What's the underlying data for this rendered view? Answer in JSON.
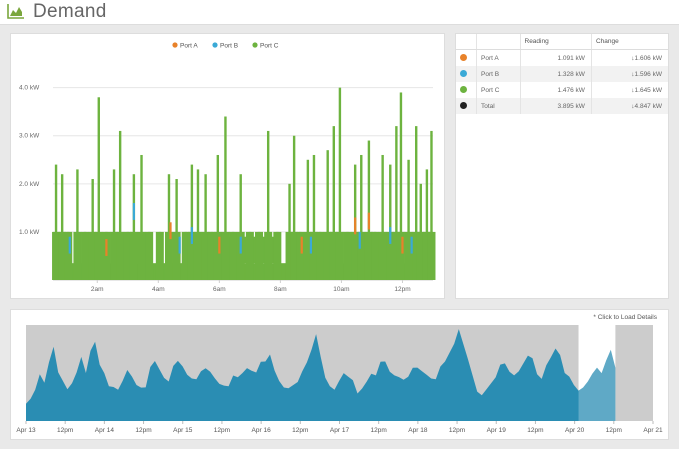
{
  "header": {
    "title": "Demand",
    "icon": "area-chart-icon"
  },
  "legend": [
    {
      "name": "Port A",
      "color": "#e8822a"
    },
    {
      "name": "Port B",
      "color": "#3aa9d6"
    },
    {
      "name": "Port C",
      "color": "#6db33f"
    }
  ],
  "table": {
    "headers": [
      "",
      "",
      "Reading",
      "Change"
    ],
    "rows": [
      {
        "color": "#e8822a",
        "name": "Port A",
        "reading": "1.091 kW",
        "change": "↓1.606 kW"
      },
      {
        "color": "#3aa9d6",
        "name": "Port B",
        "reading": "1.328 kW",
        "change": "↓1.596 kW"
      },
      {
        "color": "#6db33f",
        "name": "Port C",
        "reading": "1.476 kW",
        "change": "↓1.645 kW"
      },
      {
        "color": "#222222",
        "name": "Total",
        "reading": "3.895 kW",
        "change": "↓4.847 kW"
      }
    ]
  },
  "overview": {
    "note": "* Click to Load Details"
  },
  "chart_data": [
    {
      "type": "area",
      "title": "",
      "ylabel": "",
      "xlabel": "",
      "y_ticks": [
        "1.0 kW",
        "2.0 kW",
        "3.0 kW",
        "4.0 kW"
      ],
      "ylim": [
        0,
        4.7
      ],
      "x_range_hours": [
        0.55,
        13.0
      ],
      "x_ticks": [
        {
          "x": 2,
          "label": "2am"
        },
        {
          "x": 4,
          "label": "4am"
        },
        {
          "x": 6,
          "label": "6am"
        },
        {
          "x": 8,
          "label": "8am"
        },
        {
          "x": 10,
          "label": "10am"
        },
        {
          "x": 12,
          "label": "12pm"
        }
      ],
      "grid": true,
      "legend_position": "top-center",
      "baseline_kw": 0.35,
      "series": [
        {
          "name": "Port C",
          "color": "#6db33f",
          "spikes": [
            [
              0.65,
              2.4
            ],
            [
              0.85,
              2.2
            ],
            [
              1.05,
              1.0
            ],
            [
              1.35,
              2.3
            ],
            [
              1.6,
              1.0
            ],
            [
              1.85,
              2.1
            ],
            [
              2.05,
              3.8
            ],
            [
              2.3,
              1.0
            ],
            [
              2.55,
              2.3
            ],
            [
              2.75,
              3.1
            ],
            [
              3.0,
              1.0
            ],
            [
              3.2,
              2.2
            ],
            [
              3.45,
              2.6
            ],
            [
              3.7,
              1.0
            ],
            [
              4.05,
              1.0
            ],
            [
              4.35,
              2.2
            ],
            [
              4.6,
              2.1
            ],
            [
              4.9,
              1.0
            ],
            [
              5.1,
              2.4
            ],
            [
              5.3,
              2.3
            ],
            [
              5.55,
              2.2
            ],
            [
              5.75,
              1.0
            ],
            [
              5.95,
              2.6
            ],
            [
              6.2,
              3.4
            ],
            [
              6.45,
              1.0
            ],
            [
              6.7,
              2.2
            ],
            [
              7.0,
              1.0
            ],
            [
              7.3,
              1.0
            ],
            [
              7.6,
              3.1
            ],
            [
              7.9,
              1.0
            ],
            [
              8.3,
              2.0
            ],
            [
              8.45,
              3.0
            ],
            [
              8.65,
              1.0
            ],
            [
              8.9,
              2.5
            ],
            [
              9.1,
              2.6
            ],
            [
              9.3,
              1.0
            ],
            [
              9.55,
              2.7
            ],
            [
              9.75,
              3.2
            ],
            [
              9.95,
              4.0
            ],
            [
              10.2,
              1.0
            ],
            [
              10.45,
              2.4
            ],
            [
              10.65,
              2.6
            ],
            [
              10.9,
              2.9
            ],
            [
              11.1,
              1.0
            ],
            [
              11.35,
              2.6
            ],
            [
              11.6,
              2.4
            ],
            [
              11.8,
              3.2
            ],
            [
              11.95,
              3.9
            ],
            [
              12.2,
              2.5
            ],
            [
              12.45,
              3.2
            ],
            [
              12.6,
              2.0
            ],
            [
              12.8,
              2.3
            ],
            [
              12.95,
              3.1
            ]
          ]
        },
        {
          "name": "Port B",
          "color": "#3aa9d6",
          "spikes": [
            [
              1.1,
              0.9
            ],
            [
              3.2,
              1.6
            ],
            [
              4.7,
              0.9
            ],
            [
              5.1,
              1.1
            ],
            [
              6.7,
              0.9
            ],
            [
              9.0,
              0.9
            ],
            [
              10.6,
              1.0
            ],
            [
              11.6,
              1.1
            ],
            [
              12.3,
              0.9
            ]
          ]
        },
        {
          "name": "Port A",
          "color": "#e8822a",
          "spikes": [
            [
              2.3,
              0.85
            ],
            [
              4.4,
              1.2
            ],
            [
              6.0,
              0.9
            ],
            [
              8.7,
              0.9
            ],
            [
              10.45,
              1.3
            ],
            [
              10.9,
              1.4
            ],
            [
              12.0,
              0.9
            ]
          ]
        }
      ],
      "plateau": {
        "from": 5.3,
        "to": 7.9,
        "kw": 0.9
      }
    },
    {
      "type": "area",
      "title": "",
      "ylabel": "",
      "xlabel": "",
      "x_ticks": [
        "Apr 13",
        "12pm",
        "Apr 14",
        "12pm",
        "Apr 15",
        "12pm",
        "Apr 16",
        "12pm",
        "Apr 17",
        "12pm",
        "Apr 18",
        "12pm",
        "Apr 19",
        "12pm",
        "Apr 20",
        "12pm",
        "Apr 21"
      ],
      "x_range_days": [
        0,
        8
      ],
      "selection_days": [
        7.05,
        7.52
      ],
      "series": [
        {
          "name": "",
          "color": "#2a8db3",
          "values": [
            0.18,
            0.22,
            0.3,
            0.45,
            0.35,
            0.55,
            0.7,
            0.5,
            0.4,
            0.3,
            0.35,
            0.45,
            0.6,
            0.5,
            0.72,
            0.8,
            0.55,
            0.45,
            0.3,
            0.28,
            0.32,
            0.4,
            0.5,
            0.42,
            0.32,
            0.28,
            0.35,
            0.55,
            0.6,
            0.5,
            0.4,
            0.35,
            0.5,
            0.62,
            0.55,
            0.45,
            0.4,
            0.38,
            0.45,
            0.55,
            0.5,
            0.42,
            0.35,
            0.32,
            0.3,
            0.4,
            0.45,
            0.48,
            0.52,
            0.48,
            0.45,
            0.55,
            0.62,
            0.68,
            0.5,
            0.38,
            0.3,
            0.28,
            0.3,
            0.4,
            0.5,
            0.58,
            0.7,
            0.85,
            0.6,
            0.45,
            0.35,
            0.3,
            0.38,
            0.45,
            0.4,
            0.35,
            0.28,
            0.32,
            0.38,
            0.45,
            0.42,
            0.55,
            0.62,
            0.5,
            0.45,
            0.42,
            0.38,
            0.4,
            0.48,
            0.55,
            0.5,
            0.45,
            0.4,
            0.38,
            0.5,
            0.62,
            0.7,
            0.78,
            0.92,
            0.75,
            0.58,
            0.4,
            0.3,
            0.25,
            0.3,
            0.35,
            0.4,
            0.52,
            0.6,
            0.5,
            0.45,
            0.48,
            0.55,
            0.62,
            0.58,
            0.48,
            0.42,
            0.55,
            0.62,
            0.7,
            0.62,
            0.5,
            0.45,
            0.35,
            0.28,
            0.3,
            0.35,
            0.42,
            0.55,
            0.48,
            0.6,
            0.7,
            0.5
          ]
        }
      ]
    }
  ]
}
